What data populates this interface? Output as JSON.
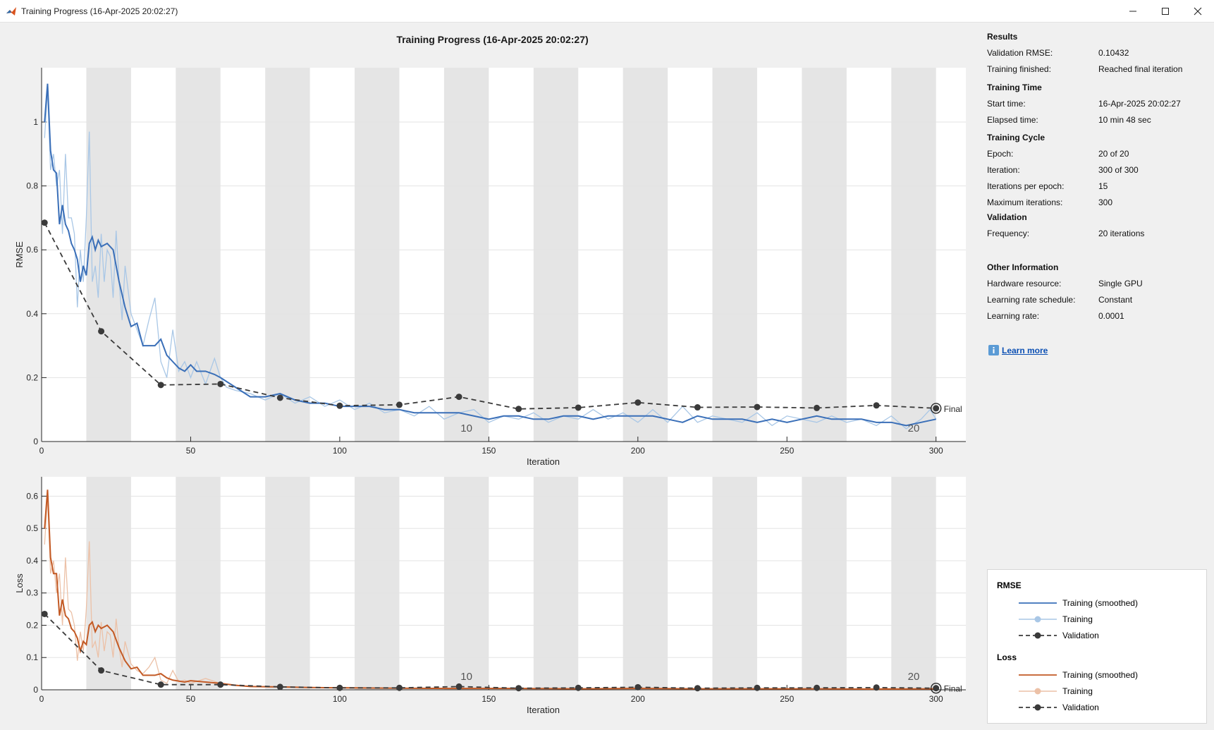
{
  "window": {
    "title": "Training Progress (16-Apr-2025 20:02:27)"
  },
  "plot_title": "Training Progress (16-Apr-2025 20:02:27)",
  "colors": {
    "rmse_smoothed": "#3a6fb8",
    "rmse_raw": "#a9c7e6",
    "loss_smoothed": "#c35a25",
    "loss_raw": "#ecc1a7",
    "validation": "#3a3a3a",
    "epoch_band": "#e5e5e5",
    "grid": "#e3e3e3"
  },
  "info": {
    "sections": [
      {
        "heading": "Results",
        "rows": [
          {
            "label": "Validation RMSE:",
            "value": "0.10432"
          },
          {
            "label": "Training finished:",
            "value": "Reached final iteration"
          }
        ]
      },
      {
        "heading": "Training Time",
        "rows": [
          {
            "label": "Start time:",
            "value": "16-Apr-2025 20:02:27"
          },
          {
            "label": "Elapsed time:",
            "value": "10 min 48 sec"
          }
        ]
      },
      {
        "heading": "Training Cycle",
        "rows": [
          {
            "label": "Epoch:",
            "value": "20 of 20"
          },
          {
            "label": "Iteration:",
            "value": "300 of 300"
          },
          {
            "label": "Iterations per epoch:",
            "value": "15"
          },
          {
            "label": "Maximum iterations:",
            "value": "300"
          }
        ]
      },
      {
        "heading": "Validation",
        "rows": [
          {
            "label": "Frequency:",
            "value": "20 iterations"
          }
        ]
      },
      {
        "heading": "Other Information",
        "rows": [
          {
            "label": "Hardware resource:",
            "value": "Single GPU"
          },
          {
            "label": "Learning rate schedule:",
            "value": "Constant"
          },
          {
            "label": "Learning rate:",
            "value": "0.0001"
          }
        ]
      }
    ],
    "learn_more": "Learn more"
  },
  "legend": {
    "groups": [
      {
        "heading": "RMSE",
        "items": [
          {
            "label": "Training (smoothed)",
            "style": "smoothed",
            "color": "#3a6fb8"
          },
          {
            "label": "Training",
            "style": "raw",
            "color": "#a9c7e6"
          },
          {
            "label": "Validation",
            "style": "validation",
            "color": "#3a3a3a"
          }
        ]
      },
      {
        "heading": "Loss",
        "items": [
          {
            "label": "Training (smoothed)",
            "style": "smoothed",
            "color": "#c35a25"
          },
          {
            "label": "Training",
            "style": "raw",
            "color": "#ecc1a7"
          },
          {
            "label": "Validation",
            "style": "validation",
            "color": "#3a3a3a"
          }
        ]
      }
    ]
  },
  "chart_data": [
    {
      "type": "line",
      "ylabel": "RMSE",
      "xlabel": "Iteration",
      "xlim": [
        0,
        310
      ],
      "ylim": [
        0,
        1.17
      ],
      "xticks": [
        0,
        50,
        100,
        150,
        200,
        250,
        300
      ],
      "yticks": [
        0,
        0.2,
        0.4,
        0.6,
        0.8,
        1
      ],
      "epoch_labels": [
        {
          "epoch": "10",
          "iteration": 142.5
        },
        {
          "epoch": "20",
          "iteration": 292.5
        }
      ],
      "final_label": "Final",
      "series": [
        {
          "name": "Training (smoothed)",
          "x": [
            1,
            2,
            3,
            4,
            5,
            6,
            7,
            8,
            9,
            10,
            11,
            12,
            13,
            14,
            15,
            16,
            17,
            18,
            19,
            20,
            22,
            24,
            26,
            28,
            30,
            32,
            34,
            36,
            38,
            40,
            42,
            44,
            46,
            48,
            50,
            52,
            55,
            58,
            60,
            65,
            70,
            75,
            80,
            85,
            90,
            95,
            100,
            105,
            110,
            115,
            120,
            125,
            130,
            135,
            140,
            145,
            150,
            155,
            160,
            165,
            170,
            175,
            180,
            185,
            190,
            195,
            200,
            205,
            210,
            215,
            220,
            225,
            230,
            235,
            240,
            245,
            250,
            255,
            260,
            265,
            270,
            275,
            280,
            285,
            290,
            295,
            300
          ],
          "y": [
            1.0,
            1.12,
            0.91,
            0.85,
            0.84,
            0.68,
            0.74,
            0.68,
            0.66,
            0.62,
            0.6,
            0.57,
            0.5,
            0.55,
            0.52,
            0.62,
            0.64,
            0.6,
            0.63,
            0.61,
            0.62,
            0.6,
            0.5,
            0.42,
            0.36,
            0.37,
            0.3,
            0.3,
            0.3,
            0.32,
            0.27,
            0.25,
            0.23,
            0.22,
            0.24,
            0.22,
            0.22,
            0.21,
            0.2,
            0.17,
            0.14,
            0.14,
            0.15,
            0.13,
            0.12,
            0.12,
            0.11,
            0.11,
            0.11,
            0.1,
            0.1,
            0.09,
            0.09,
            0.09,
            0.09,
            0.08,
            0.07,
            0.08,
            0.08,
            0.07,
            0.07,
            0.08,
            0.08,
            0.07,
            0.08,
            0.08,
            0.08,
            0.08,
            0.07,
            0.06,
            0.08,
            0.07,
            0.07,
            0.07,
            0.06,
            0.07,
            0.06,
            0.07,
            0.08,
            0.07,
            0.07,
            0.07,
            0.06,
            0.06,
            0.05,
            0.06,
            0.07
          ]
        },
        {
          "name": "Training",
          "x": [
            1,
            2,
            3,
            4,
            5,
            6,
            7,
            8,
            9,
            10,
            11,
            12,
            13,
            14,
            15,
            16,
            17,
            18,
            19,
            20,
            21,
            22,
            23,
            24,
            25,
            26,
            27,
            28,
            30,
            32,
            34,
            36,
            38,
            40,
            42,
            44,
            46,
            48,
            50,
            52,
            55,
            58,
            60,
            62,
            65,
            70,
            75,
            80,
            85,
            90,
            95,
            100,
            105,
            110,
            115,
            120,
            125,
            130,
            135,
            140,
            145,
            150,
            155,
            160,
            165,
            170,
            175,
            180,
            185,
            190,
            195,
            200,
            205,
            210,
            215,
            220,
            225,
            230,
            235,
            240,
            245,
            250,
            255,
            260,
            265,
            270,
            275,
            280,
            285,
            290,
            295,
            298,
            300
          ],
          "y": [
            0.95,
            1.1,
            0.85,
            0.9,
            0.8,
            0.85,
            0.65,
            0.9,
            0.7,
            0.7,
            0.65,
            0.42,
            0.6,
            0.5,
            0.7,
            0.97,
            0.5,
            0.55,
            0.45,
            0.65,
            0.5,
            0.6,
            0.58,
            0.45,
            0.66,
            0.5,
            0.38,
            0.55,
            0.4,
            0.35,
            0.3,
            0.38,
            0.45,
            0.25,
            0.2,
            0.35,
            0.22,
            0.25,
            0.2,
            0.25,
            0.18,
            0.26,
            0.2,
            0.17,
            0.16,
            0.15,
            0.13,
            0.15,
            0.12,
            0.14,
            0.11,
            0.13,
            0.1,
            0.12,
            0.09,
            0.1,
            0.08,
            0.11,
            0.07,
            0.09,
            0.1,
            0.06,
            0.08,
            0.07,
            0.09,
            0.06,
            0.08,
            0.07,
            0.1,
            0.07,
            0.09,
            0.06,
            0.1,
            0.06,
            0.11,
            0.06,
            0.08,
            0.07,
            0.06,
            0.09,
            0.05,
            0.08,
            0.07,
            0.06,
            0.08,
            0.06,
            0.07,
            0.05,
            0.08,
            0.04,
            0.07,
            0.1,
            0.07
          ]
        },
        {
          "name": "Validation",
          "x": [
            1,
            20,
            40,
            60,
            80,
            100,
            120,
            140,
            160,
            180,
            200,
            220,
            240,
            260,
            280,
            300
          ],
          "y": [
            0.685,
            0.345,
            0.177,
            0.18,
            0.137,
            0.112,
            0.115,
            0.14,
            0.102,
            0.106,
            0.122,
            0.107,
            0.108,
            0.105,
            0.113,
            0.104
          ]
        }
      ]
    },
    {
      "type": "line",
      "ylabel": "Loss",
      "xlabel": "Iteration",
      "xlim": [
        0,
        310
      ],
      "ylim": [
        0,
        0.66
      ],
      "xticks": [
        0,
        50,
        100,
        150,
        200,
        250,
        300
      ],
      "yticks": [
        0,
        0.1,
        0.2,
        0.3,
        0.4,
        0.5,
        0.6
      ],
      "epoch_labels": [
        {
          "epoch": "10",
          "iteration": 142.5
        },
        {
          "epoch": "20",
          "iteration": 292.5
        }
      ],
      "final_label": "Final",
      "series": [
        {
          "name": "Training (smoothed)",
          "x": [
            1,
            2,
            3,
            4,
            5,
            6,
            7,
            8,
            9,
            10,
            11,
            12,
            13,
            14,
            15,
            16,
            17,
            18,
            19,
            20,
            22,
            24,
            26,
            28,
            30,
            32,
            34,
            36,
            38,
            40,
            42,
            44,
            46,
            48,
            50,
            55,
            60,
            65,
            70,
            80,
            90,
            100,
            120,
            140,
            160,
            180,
            200,
            220,
            240,
            260,
            280,
            300
          ],
          "y": [
            0.5,
            0.62,
            0.41,
            0.36,
            0.36,
            0.23,
            0.28,
            0.23,
            0.22,
            0.19,
            0.18,
            0.16,
            0.12,
            0.15,
            0.14,
            0.2,
            0.21,
            0.18,
            0.2,
            0.19,
            0.2,
            0.18,
            0.13,
            0.09,
            0.065,
            0.07,
            0.045,
            0.045,
            0.045,
            0.05,
            0.037,
            0.03,
            0.027,
            0.024,
            0.028,
            0.024,
            0.02,
            0.014,
            0.01,
            0.009,
            0.007,
            0.006,
            0.005,
            0.004,
            0.004,
            0.003,
            0.004,
            0.003,
            0.003,
            0.003,
            0.002,
            0.003
          ]
        },
        {
          "name": "Training",
          "x": [
            1,
            2,
            3,
            4,
            5,
            6,
            7,
            8,
            9,
            10,
            11,
            12,
            13,
            14,
            15,
            16,
            17,
            18,
            19,
            20,
            21,
            22,
            23,
            24,
            25,
            26,
            27,
            28,
            30,
            32,
            34,
            36,
            38,
            40,
            42,
            44,
            46,
            48,
            50,
            55,
            60,
            65,
            70,
            80,
            90,
            100,
            120,
            140,
            160,
            180,
            200,
            220,
            240,
            260,
            280,
            300
          ],
          "y": [
            0.45,
            0.6,
            0.36,
            0.4,
            0.3,
            0.36,
            0.2,
            0.41,
            0.25,
            0.24,
            0.2,
            0.09,
            0.18,
            0.12,
            0.25,
            0.46,
            0.13,
            0.15,
            0.1,
            0.21,
            0.12,
            0.18,
            0.17,
            0.1,
            0.22,
            0.13,
            0.07,
            0.15,
            0.08,
            0.06,
            0.05,
            0.07,
            0.1,
            0.03,
            0.02,
            0.06,
            0.025,
            0.03,
            0.02,
            0.035,
            0.02,
            0.015,
            0.01,
            0.01,
            0.006,
            0.008,
            0.005,
            0.004,
            0.005,
            0.003,
            0.006,
            0.003,
            0.004,
            0.002,
            0.004,
            0.003
          ]
        },
        {
          "name": "Validation",
          "x": [
            1,
            20,
            40,
            60,
            80,
            100,
            120,
            140,
            160,
            180,
            200,
            220,
            240,
            260,
            280,
            300
          ],
          "y": [
            0.235,
            0.06,
            0.016,
            0.016,
            0.009,
            0.006,
            0.006,
            0.01,
            0.005,
            0.006,
            0.008,
            0.005,
            0.006,
            0.006,
            0.007,
            0.005
          ]
        }
      ]
    }
  ]
}
